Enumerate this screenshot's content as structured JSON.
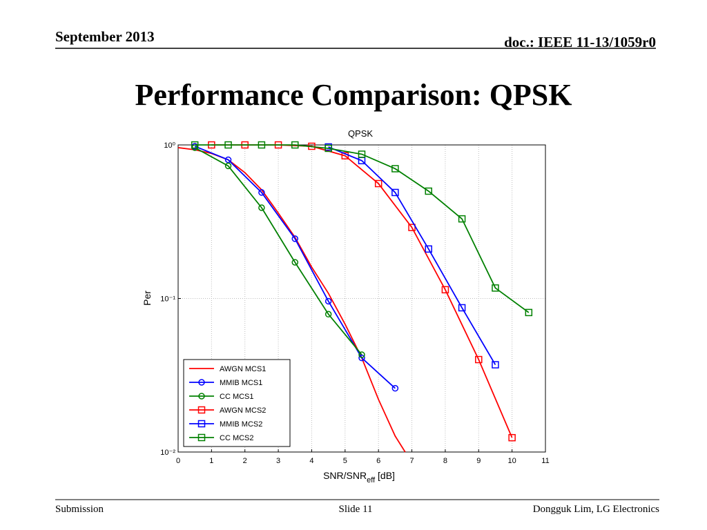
{
  "header": {
    "left": "September 2013",
    "right": "doc.: IEEE 11-13/1059r0"
  },
  "title": "Performance Comparison: QPSK",
  "footer": {
    "left": "Submission",
    "center": "Slide 11",
    "right": "Dongguk Lim, LG Electronics"
  },
  "chart_data": {
    "type": "line",
    "title": "QPSK",
    "ylabel": "Per",
    "xlabel": {
      "text": "SNR/SNR",
      "subscript": "eff",
      "suffix": " [dB]"
    },
    "xlim": [
      0,
      11
    ],
    "xticks": [
      0,
      1,
      2,
      3,
      4,
      5,
      6,
      7,
      8,
      9,
      10,
      11
    ],
    "ylim": [
      0.01,
      1
    ],
    "log_y": true,
    "yticks": [
      {
        "value": 1,
        "label": "10⁰"
      },
      {
        "value": 0.1,
        "label": "10⁻¹"
      },
      {
        "value": 0.01,
        "label": "10⁻²"
      }
    ],
    "grid": true,
    "legend": "lower left",
    "series": [
      {
        "name": "AWGN MCS1",
        "color": "#ff0000",
        "marker": "none",
        "x": [
          0,
          0.5,
          1,
          1.5,
          2,
          2.5,
          3,
          3.5,
          4,
          4.5,
          5,
          5.5,
          6,
          6.5,
          6.8
        ],
        "values": [
          0.96,
          0.93,
          0.88,
          0.8,
          0.66,
          0.51,
          0.36,
          0.25,
          0.16,
          0.108,
          0.068,
          0.041,
          0.022,
          0.0127,
          0.01
        ]
      },
      {
        "name": "MMIB MCS1",
        "color": "#0000ff",
        "marker": "circle",
        "x": [
          0.5,
          1.5,
          2.5,
          3.5,
          4.5,
          5.5,
          6.5
        ],
        "values": [
          0.98,
          0.8,
          0.49,
          0.245,
          0.096,
          0.041,
          0.026
        ]
      },
      {
        "name": "CC MCS1",
        "color": "#008000",
        "marker": "circle",
        "x": [
          0.5,
          1.5,
          2.5,
          3.5,
          4.5,
          5.5
        ],
        "values": [
          0.96,
          0.73,
          0.39,
          0.172,
          0.079,
          0.043
        ]
      },
      {
        "name": "AWGN MCS2",
        "color": "#ff0000",
        "marker": "square",
        "x": [
          1,
          2,
          3,
          4,
          5,
          6,
          7,
          8,
          9,
          10
        ],
        "values": [
          1,
          1,
          1,
          0.98,
          0.85,
          0.56,
          0.29,
          0.114,
          0.04,
          0.0124
        ]
      },
      {
        "name": "MMIB MCS2",
        "color": "#0000ff",
        "marker": "square",
        "x": [
          4.5,
          5.5,
          6.5,
          7.5,
          8.5,
          9.5
        ],
        "values": [
          0.97,
          0.79,
          0.49,
          0.21,
          0.087,
          0.037
        ]
      },
      {
        "name": "CC MCS2",
        "color": "#008000",
        "marker": "square",
        "x": [
          0.5,
          1.5,
          2.5,
          3.5,
          4.5,
          5.5,
          6.5,
          7.5,
          8.5,
          9.5,
          10.5
        ],
        "values": [
          1,
          1,
          1,
          1,
          0.95,
          0.87,
          0.7,
          0.5,
          0.33,
          0.117,
          0.081
        ]
      }
    ]
  }
}
